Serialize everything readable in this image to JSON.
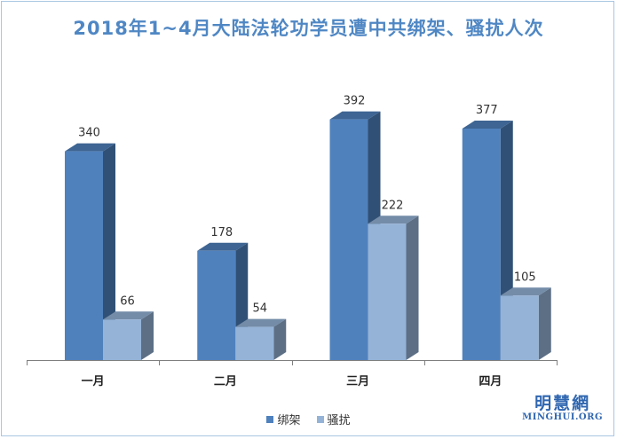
{
  "chart_data": {
    "type": "bar",
    "title": "2018年1~4月大陆法轮功学员遭中共绑架、骚扰人次",
    "categories": [
      "一月",
      "二月",
      "三月",
      "四月"
    ],
    "series": [
      {
        "name": "绑架",
        "values": [
          340,
          178,
          392,
          377
        ],
        "color": "#4f81bd"
      },
      {
        "name": "骚扰",
        "values": [
          66,
          54,
          222,
          105
        ],
        "color": "#95b3d7"
      }
    ],
    "ylim": [
      0,
      400
    ],
    "legend_position": "bottom",
    "grid": false
  },
  "logo": {
    "cn": "明慧網",
    "en": "MINGHUI.ORG"
  }
}
